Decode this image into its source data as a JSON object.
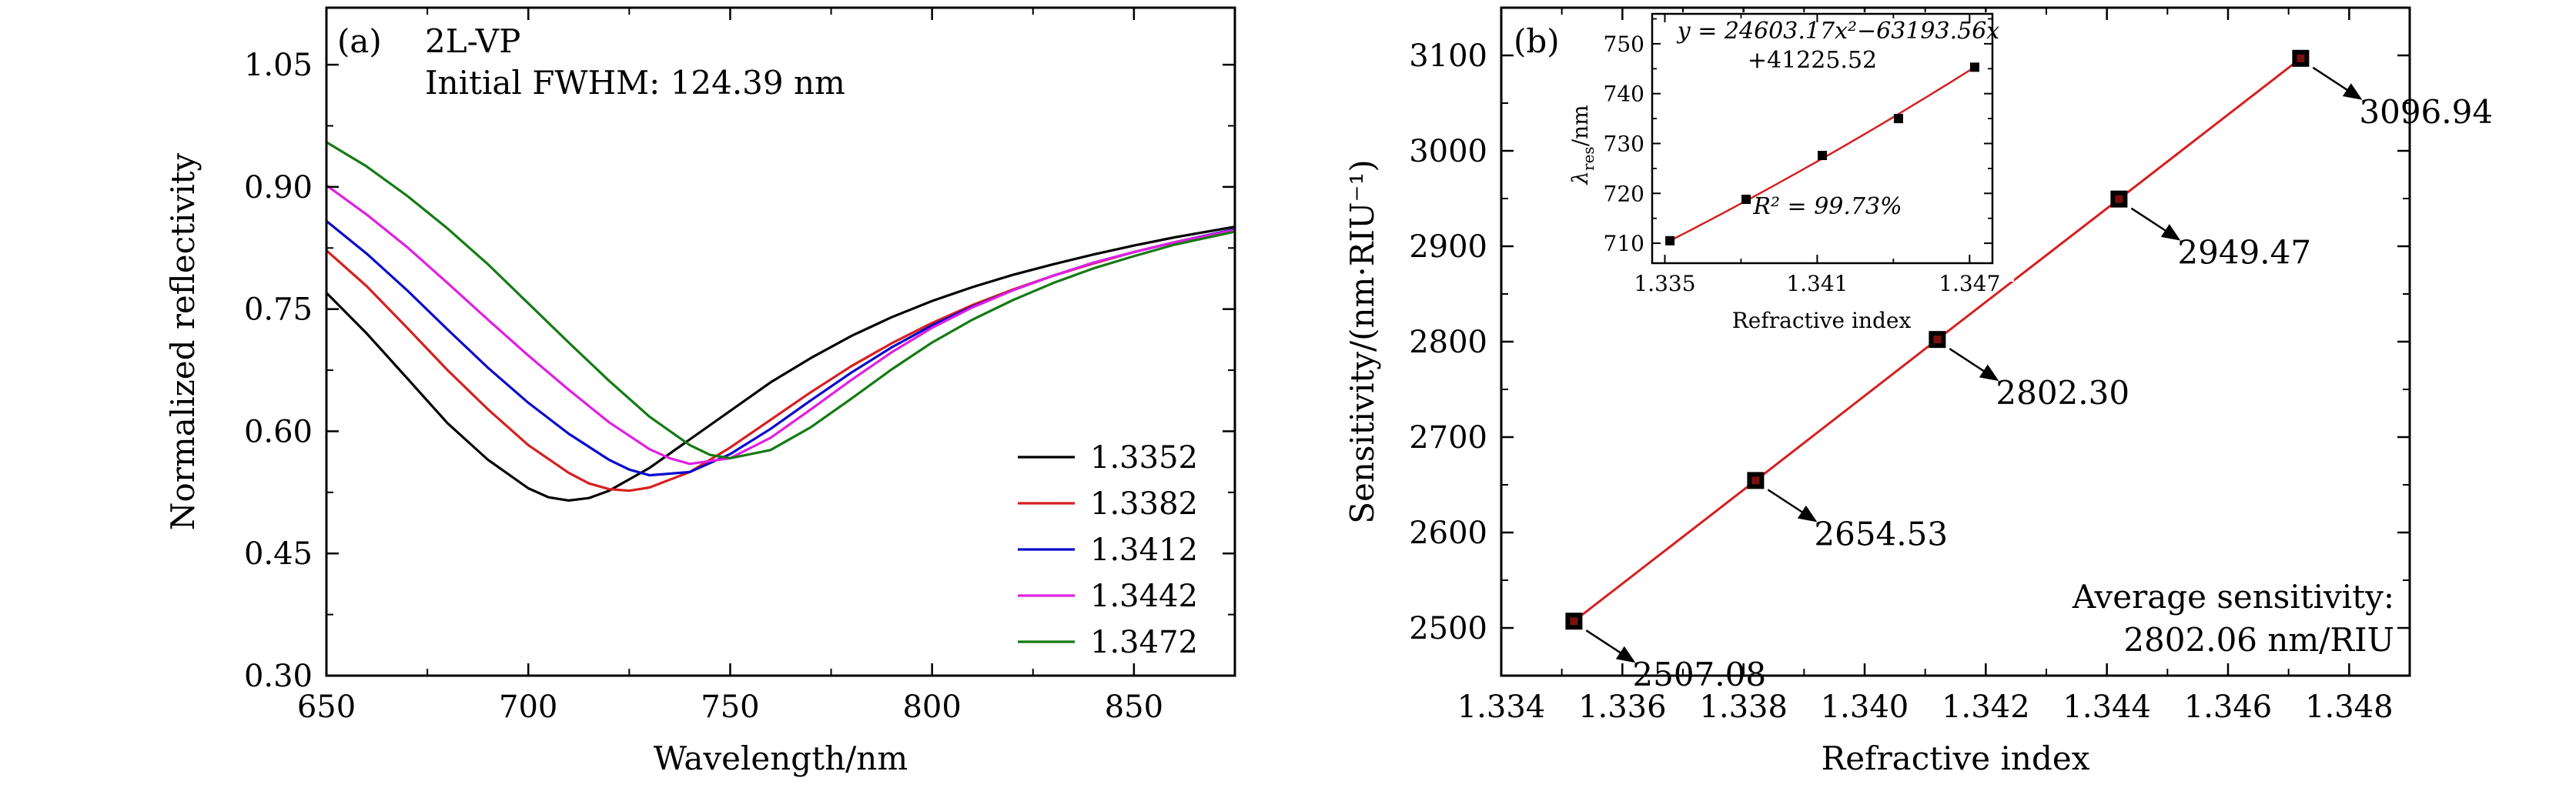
{
  "chart_data": [
    {
      "id": "a",
      "type": "line",
      "panel_label": "(a)",
      "annotation": [
        "2L-VP",
        "Initial FWHM: 124.39 nm"
      ],
      "xlabel": "Wavelength/nm",
      "ylabel": "Normalized reflectivity",
      "xlim": [
        650,
        875
      ],
      "ylim": [
        0.3,
        1.12
      ],
      "xticks": [
        650,
        700,
        750,
        800,
        850
      ],
      "xtick_labels": [
        "650",
        "700",
        "750",
        "800",
        "850"
      ],
      "yticks": [
        0.3,
        0.45,
        0.6,
        0.75,
        0.9,
        1.05
      ],
      "ytick_labels": [
        "0.30",
        "0.45",
        "0.60",
        "0.75",
        "0.90",
        "1.05"
      ],
      "grid": false,
      "legend_position": "bottom-right",
      "series": [
        {
          "name": "1.3352",
          "color": "#000000",
          "x": [
            650,
            660,
            670,
            680,
            690,
            700,
            705,
            710,
            715,
            720,
            730,
            740,
            750,
            760,
            770,
            780,
            790,
            800,
            810,
            820,
            830,
            840,
            850,
            860,
            875
          ],
          "y": [
            0.77,
            0.72,
            0.665,
            0.61,
            0.565,
            0.53,
            0.519,
            0.515,
            0.518,
            0.527,
            0.555,
            0.59,
            0.625,
            0.66,
            0.69,
            0.717,
            0.74,
            0.76,
            0.777,
            0.792,
            0.805,
            0.817,
            0.828,
            0.838,
            0.851
          ]
        },
        {
          "name": "1.3382",
          "color": "#d62020",
          "x": [
            650,
            660,
            670,
            680,
            690,
            700,
            710,
            715,
            720,
            725,
            730,
            740,
            750,
            760,
            770,
            780,
            790,
            800,
            810,
            820,
            830,
            840,
            850,
            860,
            875
          ],
          "y": [
            0.822,
            0.778,
            0.727,
            0.675,
            0.627,
            0.583,
            0.549,
            0.536,
            0.529,
            0.527,
            0.531,
            0.55,
            0.58,
            0.614,
            0.648,
            0.68,
            0.708,
            0.733,
            0.755,
            0.774,
            0.791,
            0.806,
            0.82,
            0.832,
            0.848
          ]
        },
        {
          "name": "1.3412",
          "color": "#0a0acc",
          "x": [
            650,
            660,
            670,
            680,
            690,
            700,
            710,
            720,
            725,
            730,
            740,
            750,
            760,
            770,
            780,
            790,
            800,
            810,
            820,
            830,
            840,
            850,
            860,
            875
          ],
          "y": [
            0.858,
            0.818,
            0.773,
            0.725,
            0.678,
            0.635,
            0.597,
            0.565,
            0.553,
            0.546,
            0.55,
            0.572,
            0.603,
            0.638,
            0.672,
            0.703,
            0.73,
            0.753,
            0.773,
            0.791,
            0.807,
            0.82,
            0.832,
            0.848
          ]
        },
        {
          "name": "1.3442",
          "color": "#e020e0",
          "x": [
            650,
            660,
            670,
            680,
            690,
            700,
            710,
            720,
            730,
            735,
            740,
            750,
            760,
            770,
            780,
            790,
            800,
            810,
            820,
            830,
            840,
            850,
            860,
            875
          ],
          "y": [
            0.902,
            0.866,
            0.826,
            0.782,
            0.737,
            0.693,
            0.651,
            0.611,
            0.578,
            0.567,
            0.56,
            0.567,
            0.592,
            0.627,
            0.663,
            0.697,
            0.727,
            0.752,
            0.773,
            0.791,
            0.807,
            0.82,
            0.832,
            0.847
          ]
        },
        {
          "name": "1.3472",
          "color": "#157a15",
          "x": [
            650,
            660,
            670,
            680,
            690,
            700,
            710,
            720,
            730,
            740,
            745,
            750,
            760,
            770,
            780,
            790,
            800,
            810,
            820,
            830,
            840,
            850,
            860,
            875
          ],
          "y": [
            0.955,
            0.925,
            0.889,
            0.849,
            0.805,
            0.757,
            0.709,
            0.662,
            0.618,
            0.583,
            0.571,
            0.567,
            0.577,
            0.605,
            0.64,
            0.676,
            0.709,
            0.737,
            0.761,
            0.782,
            0.8,
            0.815,
            0.829,
            0.845
          ]
        }
      ]
    },
    {
      "id": "b",
      "type": "line",
      "panel_label": "(b)",
      "xlabel": "Refractive index",
      "ylabel": "Sensitivity/(nm·RIU⁻¹)",
      "xlim": [
        1.334,
        1.349
      ],
      "ylim": [
        2450,
        3150
      ],
      "xticks": [
        1.334,
        1.336,
        1.338,
        1.34,
        1.342,
        1.344,
        1.346,
        1.348
      ],
      "xtick_labels": [
        "1.334",
        "1.336",
        "1.338",
        "1.340",
        "1.342",
        "1.344",
        "1.346",
        "1.348"
      ],
      "yticks": [
        2500,
        2600,
        2700,
        2800,
        2900,
        3000,
        3100
      ],
      "ytick_labels": [
        "2500",
        "2600",
        "2700",
        "2800",
        "2900",
        "3000",
        "3100"
      ],
      "grid": false,
      "x": [
        1.3352,
        1.3382,
        1.3412,
        1.3442,
        1.3472
      ],
      "y": [
        2507.08,
        2654.53,
        2802.3,
        2949.47,
        3096.94
      ],
      "point_labels": [
        "2507.08",
        "2654.53",
        "2802.30",
        "2949.47",
        "3096.94"
      ],
      "line_color": "#d62020",
      "marker_color": "#000000",
      "note": [
        "Average sensitivity:",
        "2802.06 nm/RIU"
      ]
    },
    {
      "id": "b-inset",
      "type": "line",
      "xlabel": "Refractive index",
      "ylabel": "λ",
      "ylabel_sub": "res",
      "ylabel_suffix": "/nm",
      "xlim": [
        1.3345,
        1.3479
      ],
      "ylim": [
        706,
        756
      ],
      "xticks": [
        1.335,
        1.341,
        1.347
      ],
      "xtick_labels": [
        "1.335",
        "1.341",
        "1.347"
      ],
      "yticks": [
        710,
        720,
        730,
        740,
        750
      ],
      "ytick_labels": [
        "710",
        "720",
        "730",
        "740",
        "750"
      ],
      "x": [
        1.3352,
        1.3382,
        1.3412,
        1.3442,
        1.3472
      ],
      "y": [
        710.5,
        718.8,
        727.6,
        735.0,
        745.3
      ],
      "fit_equation": [
        "y = 24603.17x²−63193.56x",
        "+41225.52"
      ],
      "fit_coefficients": [
        24603.17,
        -63193.56,
        41225.52
      ],
      "r_squared": "R² = 99.73%",
      "line_color": "#d62020",
      "marker_color": "#000000"
    }
  ]
}
